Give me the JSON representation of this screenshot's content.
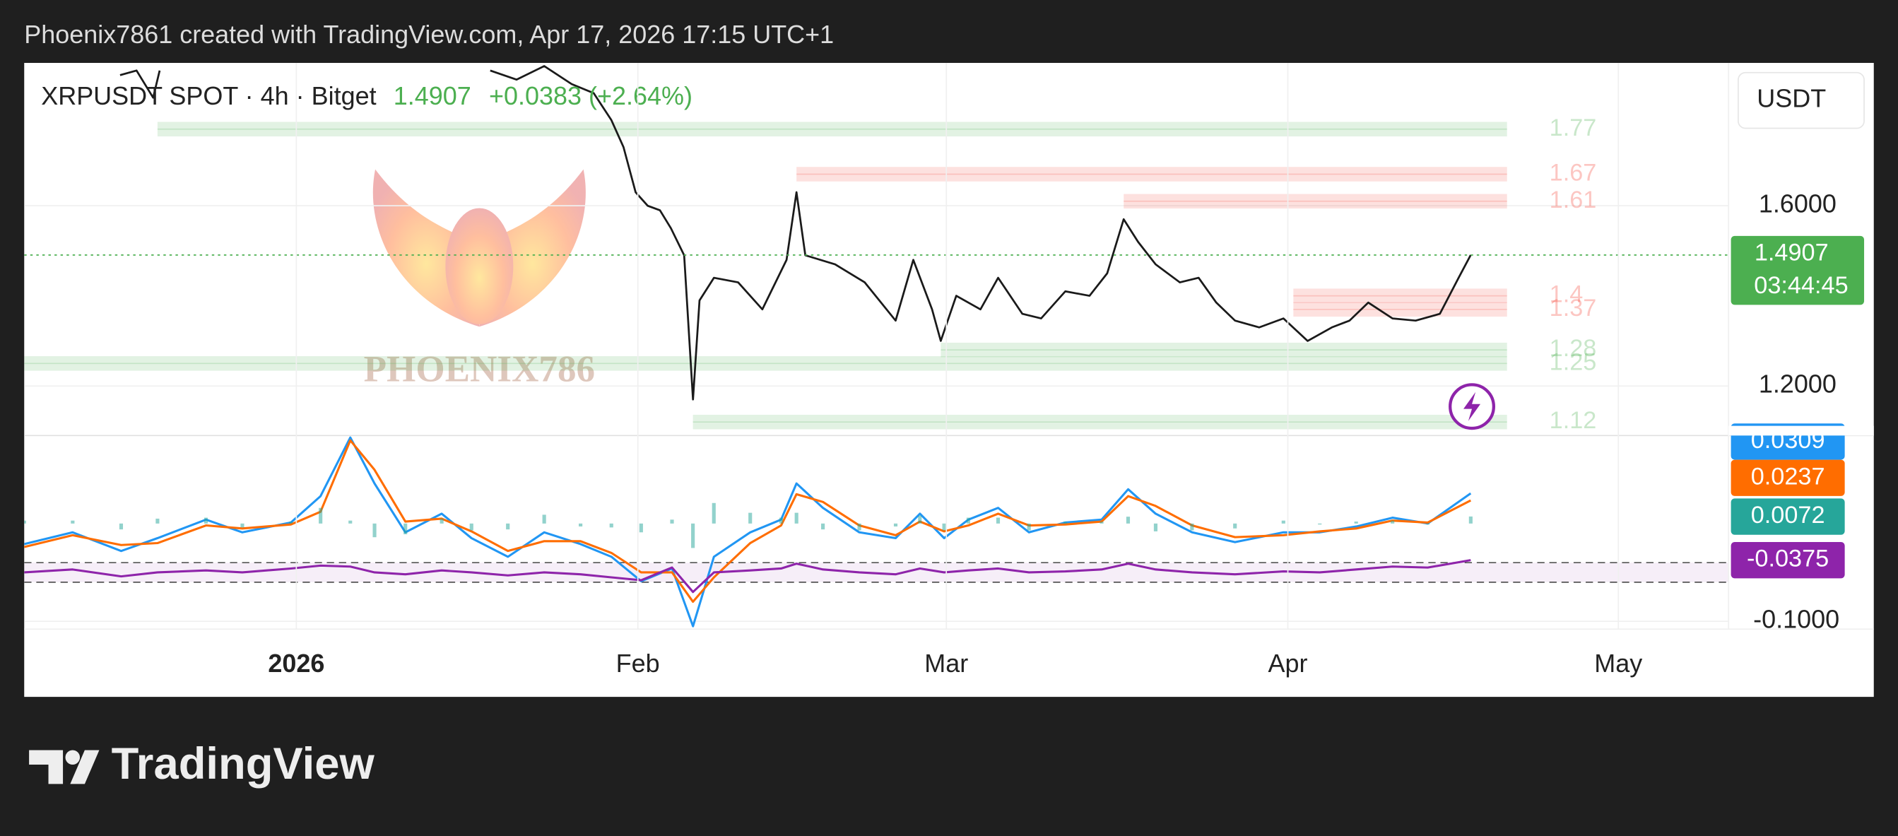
{
  "header": "Phoenix7861 created with TradingView.com, Apr 17, 2026 17:15 UTC+1",
  "currency_button": "USDT",
  "watermark": "PHOENIX786",
  "footer_logo": "TradingView",
  "chart_data": [
    {
      "type": "line",
      "symbol": "XRPUSDT SPOT · 4h · Bitget",
      "change": "+0.0383 (+2.64%)",
      "countdown": "03:44:45",
      "x": [
        -16,
        -14.5,
        -13,
        -12.4,
        2,
        17.6,
        20,
        22.5,
        25,
        27,
        28.6,
        29.7,
        30.8,
        31.9,
        33,
        34,
        35.2,
        36,
        36.6,
        37.9,
        40.1,
        42.3,
        44.5,
        45.4,
        46.2,
        48.9,
        51.6,
        54.4,
        56,
        57.7,
        58.5,
        59.9,
        62.1,
        63.7,
        65.9,
        67.6,
        69.8,
        72,
        73.6,
        75.1,
        76.4,
        78,
        80.2,
        81.9,
        83.5,
        85.2,
        87.4,
        89.6,
        91.8,
        94,
        95.6,
        97.3,
        99.5,
        101.6,
        103.8,
        105.5,
        106.6
      ],
      "series": [
        {
          "color": "#1a1a1a",
          "values": [
            1.89,
            1.9,
            1.84,
            1.9,
            null,
            1.9,
            1.88,
            1.91,
            1.87,
            1.85,
            1.79,
            1.73,
            1.63,
            1.6,
            1.59,
            1.55,
            1.49,
            1.17,
            1.39,
            1.44,
            1.43,
            1.37,
            1.48,
            1.63,
            1.49,
            1.47,
            1.43,
            1.345,
            1.48,
            1.37,
            1.3,
            1.4,
            1.37,
            1.44,
            1.36,
            1.35,
            1.41,
            1.4,
            1.45,
            1.57,
            1.52,
            1.47,
            1.43,
            1.44,
            1.385,
            1.345,
            1.33,
            1.35,
            1.3,
            1.33,
            1.345,
            1.385,
            1.35,
            1.345,
            1.36,
            1.44,
            1.4907
          ]
        }
      ],
      "xlim": [
        -24.7,
        130
      ],
      "xticks": [
        {
          "value": 0,
          "label": "2026"
        },
        {
          "value": 31,
          "label": "Feb"
        },
        {
          "value": 59,
          "label": "Mar"
        },
        {
          "value": 90,
          "label": "Apr"
        },
        {
          "value": 120,
          "label": "May"
        }
      ],
      "ylim": [
        1.09,
        1.917
      ],
      "yticks": [
        {
          "value": 1.2,
          "label": "1.2000"
        },
        {
          "value": 1.6,
          "label": "1.6000"
        }
      ],
      "grid": true,
      "last_color": "#4caf50",
      "levels": [
        {
          "value": 1.77,
          "from": -12.6,
          "color": "#4caf50"
        },
        {
          "value": 1.67,
          "from": 45.4,
          "color": "#f44336"
        },
        {
          "value": 1.61,
          "from": 75.1,
          "color": "#f44336"
        },
        {
          "value": 1.4,
          "from": 90.5,
          "color": "#f44336"
        },
        {
          "value": 1.37,
          "from": 90.5,
          "color": "#f44336"
        },
        {
          "value": 1.28,
          "from": 58.5,
          "color": "#4caf50"
        },
        {
          "value": 1.25,
          "from": -24.7,
          "color": "#4caf50"
        },
        {
          "value": 1.12,
          "from": 36,
          "color": "#4caf50"
        }
      ]
    },
    {
      "type": "line",
      "x": [
        -24.7,
        -20.3,
        -15.9,
        -12.6,
        -8.2,
        -4.9,
        -0.5,
        2.2,
        4.9,
        7.1,
        9.9,
        13.2,
        15.9,
        19.2,
        22.5,
        25.8,
        28.6,
        31.3,
        34.1,
        36,
        37.9,
        41.2,
        44,
        45.4,
        47.8,
        51.1,
        54.4,
        56.6,
        58.8,
        61,
        63.7,
        66.5,
        69.8,
        73.1,
        75.5,
        78,
        81.3,
        85.2,
        89.6,
        92.9,
        96.2,
        99.5,
        102.7,
        106.6
      ],
      "series": [
        {
          "color": "#2196f3",
          "values": [
            -0.021,
            -0.009,
            -0.028,
            -0.015,
            0.004,
            -0.009,
            0.001,
            0.028,
            0.088,
            0.041,
            -0.009,
            0.01,
            -0.015,
            -0.034,
            -0.009,
            -0.021,
            -0.034,
            -0.059,
            -0.046,
            -0.105,
            -0.034,
            -0.009,
            0.004,
            0.041,
            0.016,
            -0.009,
            -0.015,
            0.01,
            -0.015,
            0.004,
            0.016,
            -0.009,
            0.001,
            0.004,
            0.035,
            0.01,
            -0.009,
            -0.019,
            -0.009,
            -0.009,
            -0.003,
            0.006,
            0.0,
            0.0309
          ]
        },
        {
          "color": "#ff6d00",
          "values": [
            -0.024,
            -0.012,
            -0.022,
            -0.02,
            -0.002,
            -0.005,
            -0.001,
            0.012,
            0.085,
            0.055,
            0.002,
            0.005,
            -0.008,
            -0.028,
            -0.018,
            -0.018,
            -0.03,
            -0.05,
            -0.05,
            -0.08,
            -0.055,
            -0.02,
            -0.002,
            0.03,
            0.022,
            -0.002,
            -0.012,
            0.002,
            -0.008,
            -0.002,
            0.01,
            -0.002,
            -0.001,
            0.002,
            0.028,
            0.018,
            -0.002,
            -0.014,
            -0.012,
            -0.008,
            -0.005,
            0.003,
            0.001,
            0.0237
          ]
        },
        {
          "type": "bar",
          "color": "#26a69a",
          "values": [
            0.003,
            0.003,
            -0.006,
            0.005,
            0.006,
            -0.004,
            0.002,
            0.016,
            0.003,
            -0.014,
            -0.011,
            0.005,
            -0.007,
            -0.006,
            0.009,
            -0.003,
            -0.004,
            -0.009,
            0.004,
            -0.025,
            0.021,
            0.011,
            0.006,
            0.011,
            -0.006,
            -0.007,
            -0.003,
            0.008,
            -0.007,
            0.006,
            0.006,
            -0.007,
            0.002,
            0.002,
            0.007,
            -0.008,
            -0.007,
            -0.005,
            0.003,
            -0.001,
            0.002,
            0.003,
            -0.001,
            0.0072
          ]
        },
        {
          "color": "#8e24aa",
          "values": [
            -0.05,
            -0.047,
            -0.054,
            -0.05,
            -0.048,
            -0.05,
            -0.046,
            -0.043,
            -0.044,
            -0.05,
            -0.052,
            -0.048,
            -0.05,
            -0.053,
            -0.05,
            -0.052,
            -0.055,
            -0.058,
            -0.045,
            -0.07,
            -0.05,
            -0.048,
            -0.046,
            -0.041,
            -0.047,
            -0.05,
            -0.052,
            -0.046,
            -0.05,
            -0.048,
            -0.046,
            -0.05,
            -0.049,
            -0.047,
            -0.041,
            -0.047,
            -0.05,
            -0.052,
            -0.049,
            -0.05,
            -0.047,
            -0.044,
            -0.045,
            -0.0375
          ]
        }
      ],
      "xlim": [
        -24.7,
        130
      ],
      "ylim": [
        -0.108,
        0.09
      ],
      "yticks": [
        {
          "value": -0.1,
          "label": "-0.1000"
        }
      ],
      "hlines": [
        -0.04,
        -0.06
      ],
      "grid": true
    }
  ]
}
